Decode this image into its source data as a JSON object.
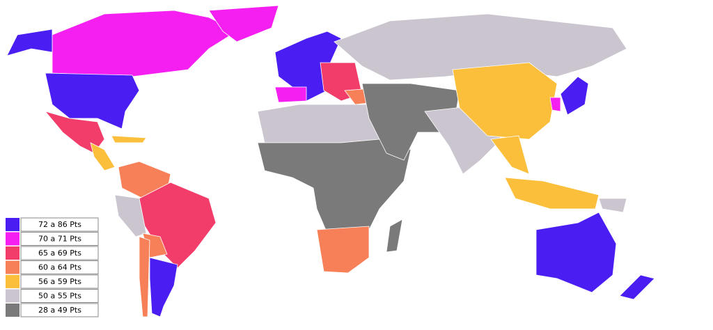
{
  "legend": {
    "items": [
      {
        "label": "72 a 86 Pts",
        "color": "#4a1ef2"
      },
      {
        "label": "70 a 71 Pts",
        "color": "#f41ff0"
      },
      {
        "label": "65 a 69 Pts",
        "color": "#f23d6b"
      },
      {
        "label": "60 a 64 Pts",
        "color": "#f78058"
      },
      {
        "label": "56 a 59 Pts",
        "color": "#fbbf3c"
      },
      {
        "label": "50 a 55 Pts",
        "color": "#cbc5cf"
      },
      {
        "label": "28 a 49 Pts",
        "color": "#7a7a7a"
      }
    ]
  }
}
